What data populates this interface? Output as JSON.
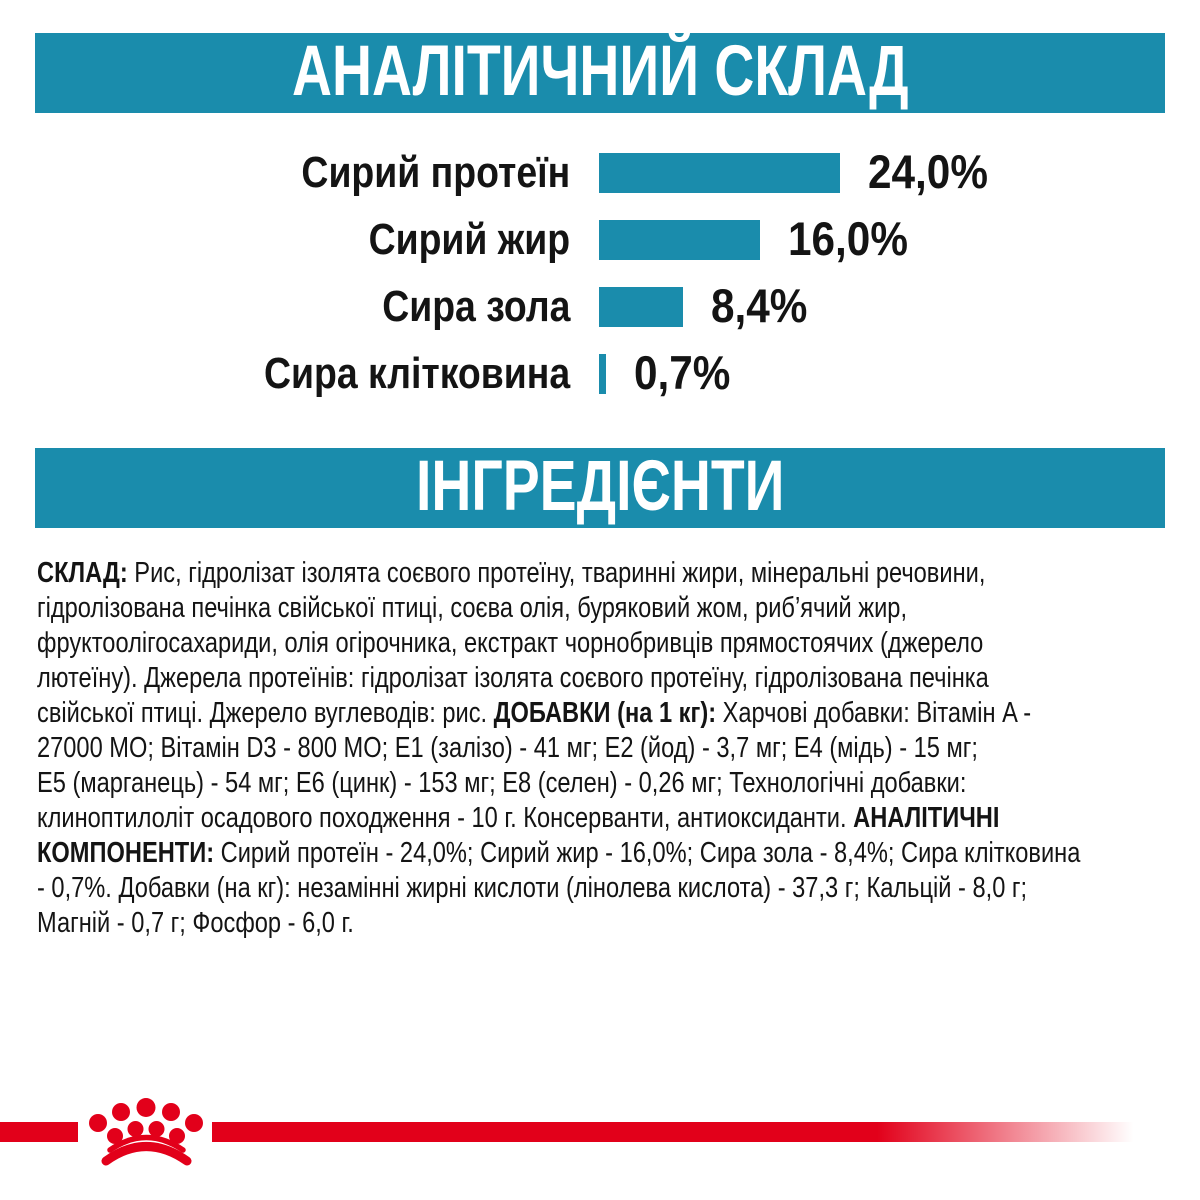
{
  "colors": {
    "teal": "#1a8cac",
    "red": "#e2001a",
    "text": "#141414"
  },
  "analytical": {
    "title": "АНАЛІТИЧНИЙ СКЛАД"
  },
  "chart_data": {
    "type": "bar",
    "orientation": "horizontal",
    "title": "АНАЛІТИЧНИЙ СКЛАД",
    "categories": [
      "Сирий протеїн",
      "Сирий жир",
      "Сира зола",
      "Сира клітковина"
    ],
    "values": [
      24.0,
      16.0,
      8.4,
      0.7
    ],
    "display_values": [
      "24,0%",
      "16,0%",
      "8,4%",
      "0,7%"
    ],
    "unit": "%",
    "xlabel": "",
    "ylabel": "",
    "xlim": [
      0,
      24
    ],
    "grid": false,
    "legend": null,
    "bar_color": "#1a8cac"
  },
  "ingredients": {
    "heading": "ІНГРЕДІЄНТИ",
    "lines": [
      [
        {
          "t": "СКЛАД:",
          "b": true
        },
        {
          "t": " Рис, гідролізат ізолята соєвого протеїну, тваринні жири, мінеральні речовини,"
        }
      ],
      [
        {
          "t": "гідролізована печінка свійської птиці, соєва олія, буряковий жом, риб’ячий жир,"
        }
      ],
      [
        {
          "t": "фруктоолігосахариди, олія огірочника, екстракт чорнобривців прямостоячих (джерело"
        }
      ],
      [
        {
          "t": "лютеїну). Джерела протеїнів: гідролізат ізолята соєвого протеїну, гідролізована печінка"
        }
      ],
      [
        {
          "t": "свійської птиці. Джерело вуглеводів: рис. "
        },
        {
          "t": "ДОБАВКИ (на 1 кг):",
          "b": true
        },
        {
          "t": " Харчові добавки: Вітамін A -"
        }
      ],
      [
        {
          "t": "27000 МО; Вітамін D3 - 800 МО; E1 (залізо) - 41 мг; E2 (йод) - 3,7 мг; E4 (мідь) - 15 мг;"
        }
      ],
      [
        {
          "t": "E5 (марганець) - 54 мг; E6 (цинк) - 153 мг; E8 (селен) - 0,26 мг; Технологічні добавки:"
        }
      ],
      [
        {
          "t": "клиноптилоліт осадового походження - 10 г. Консерванти, антиоксиданти. "
        },
        {
          "t": "АНАЛІТИЧНІ",
          "b": true
        }
      ],
      [
        {
          "t": "КОМПОНЕНТИ:",
          "b": true
        },
        {
          "t": " Сирий протеїн - 24,0%; Сирий жир - 16,0%; Сира зола - 8,4%; Сира клітковина"
        }
      ],
      [
        {
          "t": "- 0,7%. Добавки (на кг): незамінні жирні кислоти (лінолева кислота) - 37,3 г; Кальцій - 8,0 г;"
        }
      ],
      [
        {
          "t": "Магній - 0,7 г; Фосфор - 6,0 г."
        }
      ]
    ]
  },
  "icons": {
    "footer_logo": "royal-canin-crown-icon"
  }
}
